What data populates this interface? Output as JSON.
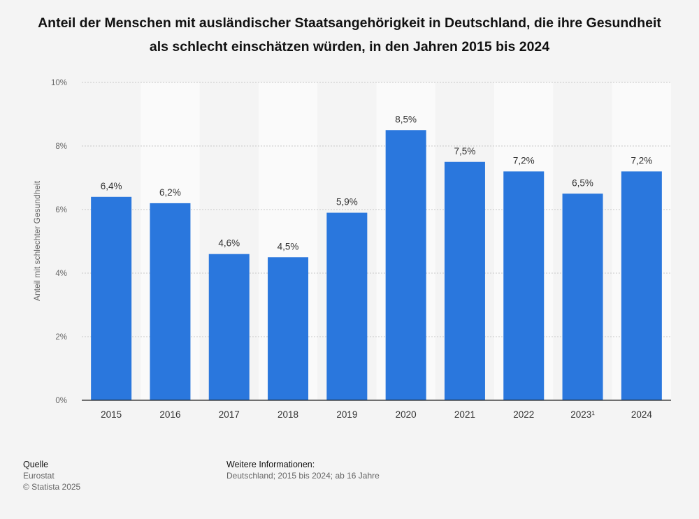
{
  "chart_data": {
    "type": "bar",
    "title": "Anteil der Menschen mit ausländischer Staatsangehörigkeit in Deutschland, die ihre Gesundheit als schlecht einschätzen würden, in den Jahren 2015 bis 2024",
    "xlabel": "",
    "ylabel": "Anteil mit schlechter Gesundheit",
    "categories": [
      "2015",
      "2016",
      "2017",
      "2018",
      "2019",
      "2020",
      "2021",
      "2022",
      "2023¹",
      "2024"
    ],
    "values": [
      6.4,
      6.2,
      4.6,
      4.5,
      5.9,
      8.5,
      7.5,
      7.2,
      6.5,
      7.2
    ],
    "value_labels": [
      "6,4%",
      "6,2%",
      "4,6%",
      "4,5%",
      "5,9%",
      "8,5%",
      "7,5%",
      "7,2%",
      "6,5%",
      "7,2%"
    ],
    "ylim": [
      0,
      10
    ],
    "yticks": [
      0,
      2,
      4,
      6,
      8,
      10
    ],
    "ytick_labels": [
      "0%",
      "2%",
      "4%",
      "6%",
      "8%",
      "10%"
    ],
    "grid": true,
    "bar_color": "#2a77dd"
  },
  "footer": {
    "source_heading": "Quelle",
    "source": "Eurostat",
    "copyright": "© Statista 2025",
    "info_heading": "Weitere Informationen:",
    "info": "Deutschland; 2015 bis 2024; ab 16 Jahre"
  }
}
